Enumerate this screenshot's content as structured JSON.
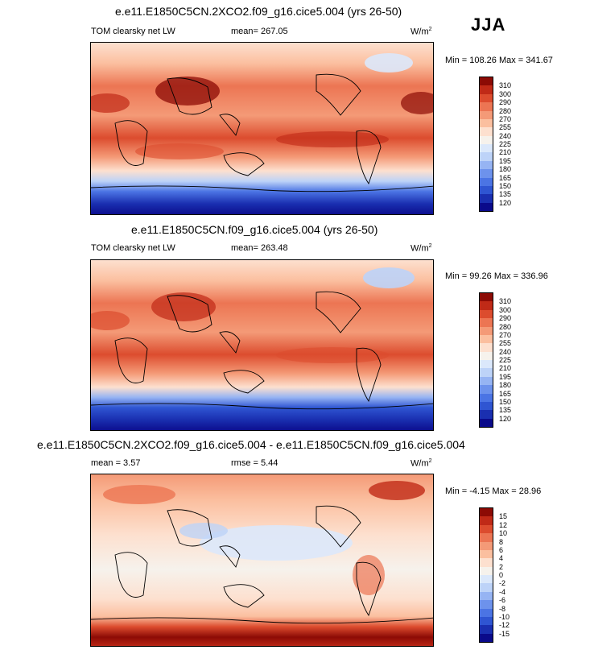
{
  "season": "JJA",
  "units": "W/m",
  "units_sup": "2",
  "panels": [
    {
      "title": "e.e11.E1850C5CN.2XCO2.f09_g16.cice5.004 (yrs 26-50)",
      "left_label": "TOM clearsky net LW",
      "center_label": "mean= 267.05",
      "minmax": "Min = 108.26 Max = 341.67"
    },
    {
      "title": "e.e11.E1850C5CN.f09_g16.cice5.004 (yrs 26-50)",
      "left_label": "TOM clearsky net LW",
      "center_label": "mean= 263.48",
      "minmax": "Min =  99.26 Max = 336.96"
    },
    {
      "title": "e.e11.E1850C5CN.2XCO2.f09_g16.cice5.004 - e.e11.E1850C5CN.f09_g16.cice5.004",
      "left_label": "mean =   3.57",
      "center_label": "rmse =   5.44",
      "minmax": "Min =  -4.15 Max =  28.96"
    }
  ],
  "chart_data": [
    {
      "type": "heatmap",
      "title": "e.e11.E1850C5CN.2XCO2.f09_g16.cice5.004 (yrs 26-50)",
      "variable": "TOM clearsky net LW",
      "units": "W/m2",
      "mean": 267.05,
      "min": 108.26,
      "max": 341.67,
      "colorbar_levels": [
        120,
        135,
        150,
        165,
        180,
        195,
        210,
        225,
        240,
        255,
        270,
        280,
        290,
        300,
        310
      ],
      "colorbar_colors": [
        "#0a0a8a",
        "#1a2fb0",
        "#2f55d2",
        "#4b74e4",
        "#6d92ec",
        "#96b4f3",
        "#bdd3f8",
        "#dbe8fb",
        "#f6f2ec",
        "#fde0cf",
        "#fbbf9f",
        "#f49a77",
        "#ec7553",
        "#dc4c2e",
        "#c02a17",
        "#8c0b05"
      ]
    },
    {
      "type": "heatmap",
      "title": "e.e11.E1850C5CN.f09_g16.cice5.004 (yrs 26-50)",
      "variable": "TOM clearsky net LW",
      "units": "W/m2",
      "mean": 263.48,
      "min": 99.26,
      "max": 336.96,
      "colorbar_levels": [
        120,
        135,
        150,
        165,
        180,
        195,
        210,
        225,
        240,
        255,
        270,
        280,
        290,
        300,
        310
      ],
      "colorbar_colors": [
        "#0a0a8a",
        "#1a2fb0",
        "#2f55d2",
        "#4b74e4",
        "#6d92ec",
        "#96b4f3",
        "#bdd3f8",
        "#dbe8fb",
        "#f6f2ec",
        "#fde0cf",
        "#fbbf9f",
        "#f49a77",
        "#ec7553",
        "#dc4c2e",
        "#c02a17",
        "#8c0b05"
      ]
    },
    {
      "type": "heatmap",
      "title": "e.e11.E1850C5CN.2XCO2.f09_g16.cice5.004 - e.e11.E1850C5CN.f09_g16.cice5.004",
      "units": "W/m2",
      "mean": 3.57,
      "rmse": 5.44,
      "min": -4.15,
      "max": 28.96,
      "colorbar_levels": [
        -15,
        -12,
        -10,
        -8,
        -6,
        -4,
        -2,
        0,
        2,
        4,
        6,
        8,
        10,
        12,
        15
      ],
      "colorbar_colors": [
        "#0a0a8a",
        "#1a2fb0",
        "#2f55d2",
        "#4b74e4",
        "#6d92ec",
        "#96b4f3",
        "#bdd3f8",
        "#dbe8fb",
        "#f6f2ec",
        "#fde0cf",
        "#fbbf9f",
        "#f49a77",
        "#ec7553",
        "#dc4c2e",
        "#c02a17",
        "#8c0b05"
      ]
    }
  ]
}
